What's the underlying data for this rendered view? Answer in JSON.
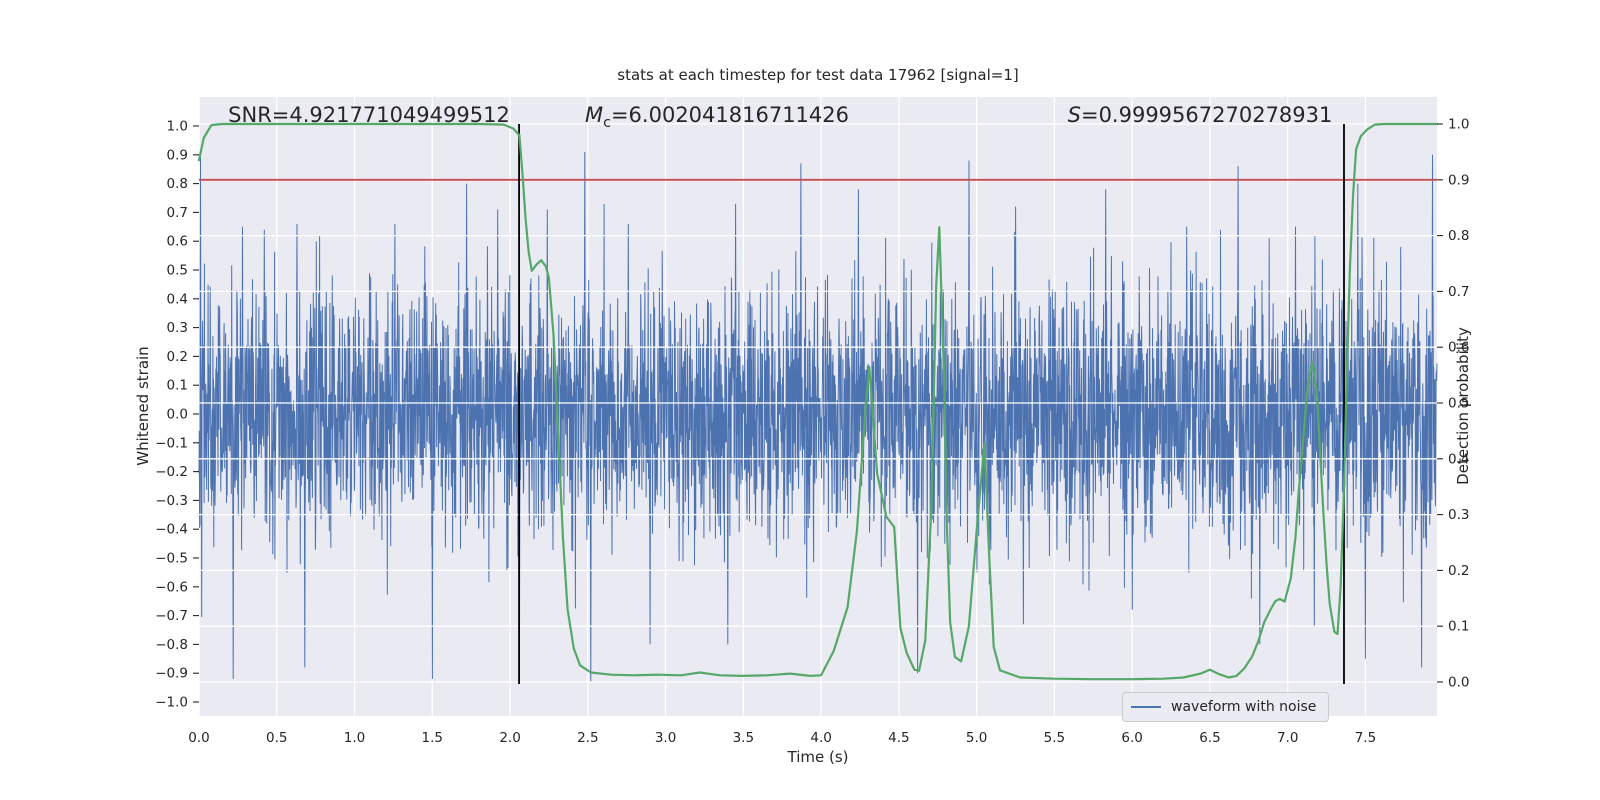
{
  "colors": {
    "plot_background": "#eaeaf2",
    "grid": "#ffffff",
    "text": "#262626",
    "waveform_blue": "#4c72b0",
    "probability_green": "#55a868",
    "threshold_red": "#c44e52",
    "vline_black": "#000000"
  },
  "annotations": {
    "snr": "SNR=4.921771049499512",
    "mc_var": "M",
    "mc_sub": "c",
    "mc_rest": "=6.002041816711426",
    "s_var": "S",
    "s_rest": "=0.9999567270278931"
  },
  "legend": {
    "label": "waveform with noise"
  },
  "chart_data": {
    "type": "line",
    "title": "stats at each timestep for test data 17962 [signal=1]",
    "xlabel": "Time (s)",
    "ylabel_left": "Whitened strain",
    "ylabel_right": "Detection probability",
    "xlim": [
      0,
      7.96
    ],
    "ylim_left": [
      -1.05,
      1.1
    ],
    "ylim_right": [
      -0.06,
      1.05
    ],
    "grid": "right-axis horizontal over data, x-grid under data",
    "legend_position": "lower right",
    "xtick_values": [
      0,
      0.5,
      1,
      1.5,
      2,
      2.5,
      3,
      3.5,
      4,
      4.5,
      5,
      5.5,
      6,
      6.5,
      7,
      7.5
    ],
    "xtick_labels": [
      "0.0",
      "0.5",
      "1.0",
      "1.5",
      "2.0",
      "2.5",
      "3.0",
      "3.5",
      "4.0",
      "4.5",
      "5.0",
      "5.5",
      "6.0",
      "6.5",
      "7.0",
      "7.5"
    ],
    "ytick_left_values": [
      1.0,
      0.9,
      0.8,
      0.7,
      0.6,
      0.5,
      0.4,
      0.3,
      0.2,
      0.1,
      0.0,
      -0.1,
      -0.2,
      -0.3,
      -0.4,
      -0.5,
      -0.6,
      -0.7,
      -0.8,
      -0.9,
      -1.0
    ],
    "ytick_left_labels": [
      "1.0",
      "0.9",
      "0.8",
      "0.7",
      "0.6",
      "0.5",
      "0.4",
      "0.3",
      "0.2",
      "0.1",
      "0.0",
      "−0.1",
      "−0.2",
      "−0.3",
      "−0.4",
      "−0.5",
      "−0.6",
      "−0.7",
      "−0.8",
      "−0.9",
      "−1.0"
    ],
    "ytick_right_values": [
      1.0,
      0.9,
      0.8,
      0.7,
      0.6,
      0.5,
      0.4,
      0.3,
      0.2,
      0.1,
      0.0
    ],
    "ytick_right_labels": [
      "1.0",
      "0.9",
      "0.8",
      "0.7",
      "0.6",
      "0.5",
      "0.4",
      "0.3",
      "0.2",
      "0.1",
      "0.0"
    ],
    "threshold_line": {
      "axis": "right",
      "value": 0.9
    },
    "vlines": [
      2.058,
      7.362
    ],
    "series": [
      {
        "name": "waveform with noise",
        "axis": "left",
        "kind": "gaussian-noise",
        "n": 4096,
        "sigma": 0.215,
        "seed": 42,
        "clamp": 0.95,
        "salient_extremes": [
          [
            0.01,
            0.9
          ],
          [
            0.22,
            -0.92
          ],
          [
            0.28,
            0.65
          ],
          [
            0.42,
            0.64
          ],
          [
            0.63,
            0.66
          ],
          [
            0.68,
            -0.88
          ],
          [
            1.26,
            0.66
          ],
          [
            1.5,
            -0.92
          ],
          [
            1.72,
            0.8
          ],
          [
            1.92,
            0.71
          ],
          [
            2.06,
            -0.75
          ],
          [
            2.24,
            0.71
          ],
          [
            2.48,
            0.91
          ],
          [
            2.52,
            -0.93
          ],
          [
            2.76,
            0.66
          ],
          [
            2.9,
            -0.8
          ],
          [
            3.4,
            -0.8
          ],
          [
            3.45,
            0.73
          ],
          [
            3.87,
            0.87
          ],
          [
            4.24,
            0.78
          ],
          [
            4.62,
            -0.9
          ],
          [
            4.95,
            0.88
          ],
          [
            5.25,
            0.72
          ],
          [
            5.3,
            -0.73
          ],
          [
            5.83,
            0.78
          ],
          [
            6.0,
            -0.68
          ],
          [
            6.35,
            0.65
          ],
          [
            6.68,
            0.86
          ],
          [
            6.82,
            -0.8
          ],
          [
            7.05,
            0.65
          ],
          [
            7.17,
            -0.74
          ],
          [
            7.45,
            0.8
          ],
          [
            7.5,
            -0.85
          ],
          [
            7.86,
            -0.88
          ],
          [
            7.93,
            0.9
          ]
        ]
      },
      {
        "name": "detection probability",
        "axis": "right",
        "kind": "line",
        "points": [
          [
            0.0,
            0.935
          ],
          [
            0.03,
            0.975
          ],
          [
            0.08,
            0.998
          ],
          [
            0.15,
            1.0
          ],
          [
            0.6,
            1.0
          ],
          [
            1.2,
            1.0
          ],
          [
            1.8,
            1.0
          ],
          [
            1.96,
            0.999
          ],
          [
            2.02,
            0.992
          ],
          [
            2.06,
            0.98
          ],
          [
            2.08,
            0.91
          ],
          [
            2.1,
            0.83
          ],
          [
            2.12,
            0.77
          ],
          [
            2.14,
            0.737
          ],
          [
            2.17,
            0.748
          ],
          [
            2.2,
            0.756
          ],
          [
            2.23,
            0.745
          ],
          [
            2.25,
            0.724
          ],
          [
            2.28,
            0.62
          ],
          [
            2.31,
            0.44
          ],
          [
            2.34,
            0.26
          ],
          [
            2.37,
            0.13
          ],
          [
            2.41,
            0.06
          ],
          [
            2.45,
            0.03
          ],
          [
            2.52,
            0.017
          ],
          [
            2.65,
            0.013
          ],
          [
            2.8,
            0.012
          ],
          [
            2.95,
            0.013
          ],
          [
            3.1,
            0.012
          ],
          [
            3.22,
            0.017
          ],
          [
            3.35,
            0.012
          ],
          [
            3.5,
            0.011
          ],
          [
            3.65,
            0.012
          ],
          [
            3.8,
            0.015
          ],
          [
            3.93,
            0.011
          ],
          [
            4.0,
            0.012
          ],
          [
            4.08,
            0.055
          ],
          [
            4.17,
            0.134
          ],
          [
            4.23,
            0.27
          ],
          [
            4.28,
            0.47
          ],
          [
            4.31,
            0.565
          ],
          [
            4.36,
            0.374
          ],
          [
            4.42,
            0.296
          ],
          [
            4.47,
            0.278
          ],
          [
            4.51,
            0.097
          ],
          [
            4.55,
            0.052
          ],
          [
            4.6,
            0.022
          ],
          [
            4.63,
            0.02
          ],
          [
            4.67,
            0.075
          ],
          [
            4.71,
            0.32
          ],
          [
            4.74,
            0.71
          ],
          [
            4.76,
            0.815
          ],
          [
            4.79,
            0.55
          ],
          [
            4.81,
            0.27
          ],
          [
            4.83,
            0.106
          ],
          [
            4.86,
            0.045
          ],
          [
            4.9,
            0.037
          ],
          [
            4.95,
            0.1
          ],
          [
            5.0,
            0.27
          ],
          [
            5.05,
            0.428
          ],
          [
            5.08,
            0.23
          ],
          [
            5.11,
            0.063
          ],
          [
            5.15,
            0.021
          ],
          [
            5.28,
            0.008
          ],
          [
            5.5,
            0.006
          ],
          [
            5.75,
            0.005
          ],
          [
            6.0,
            0.005
          ],
          [
            6.2,
            0.006
          ],
          [
            6.33,
            0.008
          ],
          [
            6.44,
            0.015
          ],
          [
            6.5,
            0.022
          ],
          [
            6.56,
            0.014
          ],
          [
            6.62,
            0.008
          ],
          [
            6.67,
            0.011
          ],
          [
            6.72,
            0.024
          ],
          [
            6.77,
            0.045
          ],
          [
            6.81,
            0.072
          ],
          [
            6.85,
            0.108
          ],
          [
            6.89,
            0.13
          ],
          [
            6.92,
            0.145
          ],
          [
            6.95,
            0.149
          ],
          [
            6.98,
            0.144
          ],
          [
            7.02,
            0.186
          ],
          [
            7.05,
            0.26
          ],
          [
            7.07,
            0.34
          ],
          [
            7.09,
            0.4
          ],
          [
            7.11,
            0.47
          ],
          [
            7.13,
            0.535
          ],
          [
            7.16,
            0.573
          ],
          [
            7.19,
            0.51
          ],
          [
            7.21,
            0.4
          ],
          [
            7.23,
            0.3
          ],
          [
            7.25,
            0.21
          ],
          [
            7.27,
            0.14
          ],
          [
            7.3,
            0.09
          ],
          [
            7.32,
            0.086
          ],
          [
            7.34,
            0.17
          ],
          [
            7.36,
            0.33
          ],
          [
            7.38,
            0.55
          ],
          [
            7.4,
            0.74
          ],
          [
            7.42,
            0.87
          ],
          [
            7.44,
            0.955
          ],
          [
            7.47,
            0.978
          ],
          [
            7.51,
            0.99
          ],
          [
            7.56,
            0.999
          ],
          [
            7.62,
            1.0
          ],
          [
            7.75,
            1.0
          ],
          [
            7.9,
            1.0
          ],
          [
            7.96,
            1.0
          ]
        ]
      }
    ]
  }
}
